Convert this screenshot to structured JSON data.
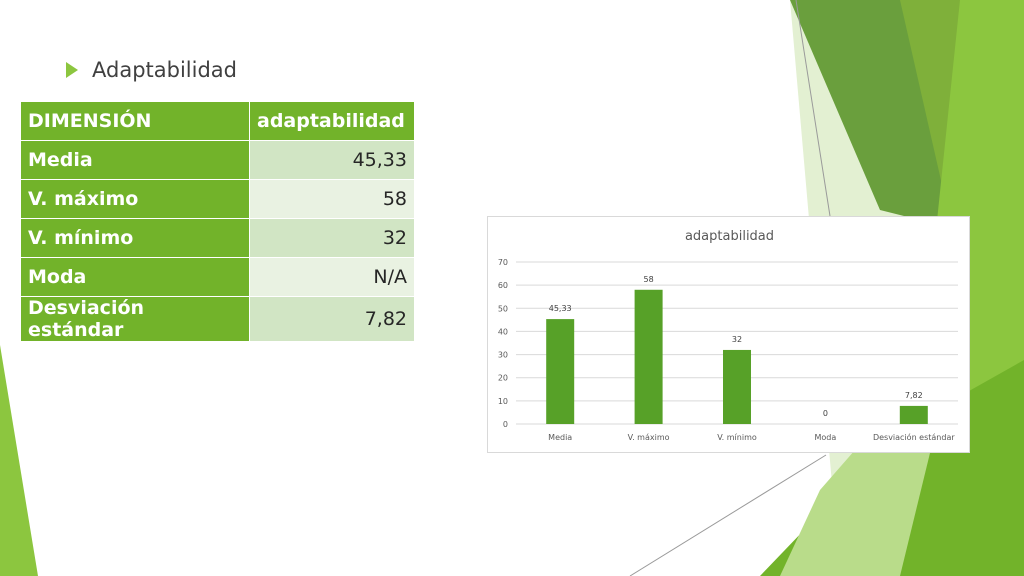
{
  "bullet": {
    "text": "Adaptabilidad"
  },
  "table": {
    "headers": [
      "DIMENSIÓN",
      "adaptabilidad"
    ],
    "rows": [
      {
        "label": "Media",
        "value": "45,33"
      },
      {
        "label": "V. máximo",
        "value": "58"
      },
      {
        "label": "V. mínimo",
        "value": "32"
      },
      {
        "label": "Moda",
        "value": "N/A"
      },
      {
        "label": "Desviación estándar",
        "value": "7,82"
      }
    ]
  },
  "colors": {
    "accent": "#72b32a",
    "bar": "#57a128",
    "row_light": "#d1e5c4",
    "row_lighter": "#e9f2e2"
  },
  "chart_data": {
    "type": "bar",
    "title": "adaptabilidad",
    "categories": [
      "Media",
      "V. máximo",
      "V. mínimo",
      "Moda",
      "Desviación estándar"
    ],
    "values": [
      45.33,
      58,
      32,
      0,
      7.82
    ],
    "data_labels": [
      "45,33",
      "58",
      "32",
      "0",
      "7,82"
    ],
    "yticks": [
      "0",
      "10",
      "20",
      "30",
      "40",
      "50",
      "60",
      "70"
    ],
    "ylim": [
      0,
      70
    ],
    "grid": true,
    "xlabel": "",
    "ylabel": ""
  }
}
